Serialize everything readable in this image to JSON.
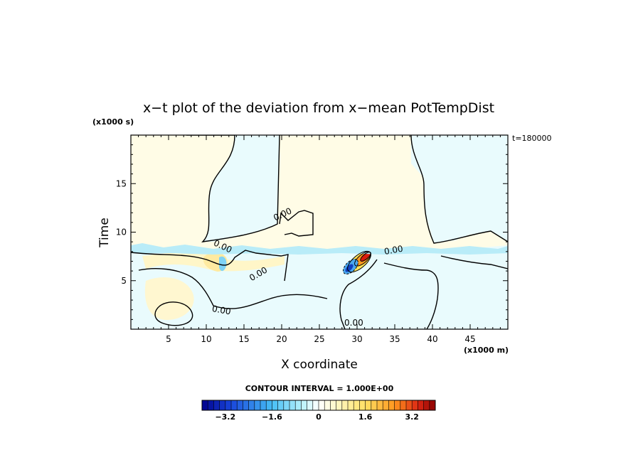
{
  "chart_data": {
    "type": "heatmap",
    "title": "x−t plot of the deviation from x−mean PotTempDist",
    "xlabel": "X coordinate",
    "ylabel": "Time",
    "x_unit": "(x1000 m)",
    "y_unit": "(x1000 s)",
    "time_stamp": "t=180000",
    "xlim": [
      0,
      50
    ],
    "ylim": [
      0,
      20
    ],
    "x_ticks": [
      5,
      10,
      15,
      20,
      25,
      30,
      35,
      40,
      45
    ],
    "y_ticks": [
      5,
      10,
      15
    ],
    "contour_interval_label": "CONTOUR INTERVAL = 1.000E+00",
    "contour_value_label": "0.00",
    "colorbar": {
      "min": -4.0,
      "max": 4.0,
      "step": 0.2,
      "tick_values": [
        -3.2,
        -1.6,
        0,
        1.6,
        3.2
      ],
      "tick_labels": [
        "−3.2",
        "−1.6",
        "0",
        "1.6",
        "3.2"
      ],
      "low_color": "#00008b",
      "mid_color": "#ffffff",
      "high_color": "#8b0000"
    },
    "regions": [
      {
        "name": "upper-left warm",
        "sign": "positive",
        "x": [
          0,
          13
        ],
        "t": [
          10,
          20
        ]
      },
      {
        "name": "upper-center cool",
        "sign": "negative",
        "x": [
          13,
          20
        ],
        "t": [
          12,
          20
        ]
      },
      {
        "name": "upper-mid warm",
        "sign": "positive",
        "x": [
          20,
          37
        ],
        "t": [
          10,
          20
        ]
      },
      {
        "name": "upper-right cool",
        "sign": "negative",
        "x": [
          37,
          50
        ],
        "t": [
          8,
          20
        ]
      },
      {
        "name": "lower band cool",
        "sign": "negative",
        "x": [
          0,
          50
        ],
        "t": [
          0,
          8
        ]
      },
      {
        "name": "warm patch near x=11",
        "sign": "positive",
        "x": [
          10,
          14
        ],
        "t": [
          5,
          8
        ]
      },
      {
        "name": "strong dipole near x=31",
        "sign": "mixed",
        "x": [
          28,
          33
        ],
        "t": [
          5,
          8
        ],
        "peak_positive": 3.6,
        "peak_negative": -3.4
      }
    ]
  }
}
